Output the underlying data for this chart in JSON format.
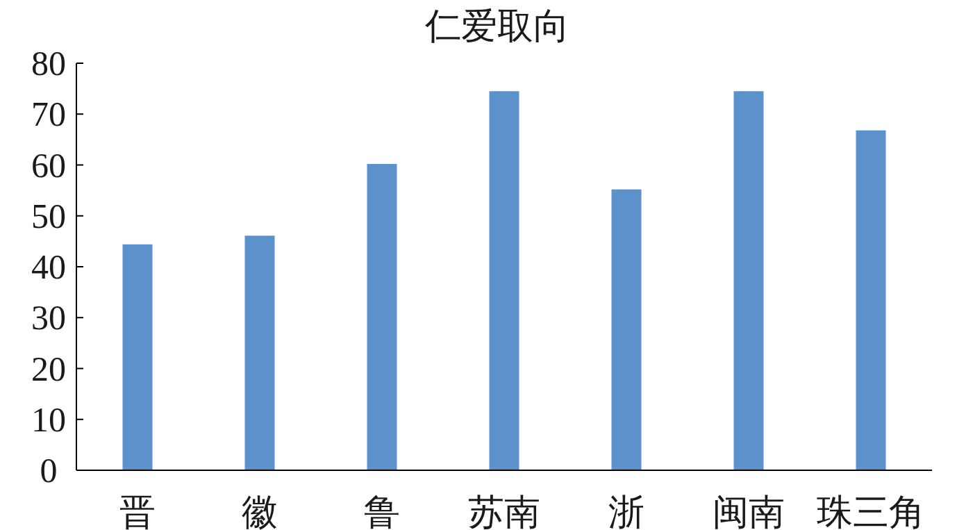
{
  "chart_data": {
    "type": "bar",
    "title": "仁爱取向",
    "categories": [
      "晋",
      "徽",
      "鲁",
      "苏南",
      "浙",
      "闽南",
      "珠三角"
    ],
    "values": [
      44.4,
      46.1,
      60.2,
      74.5,
      55.2,
      74.5,
      66.8
    ],
    "color": "#5b92cb",
    "ylim": [
      0,
      80
    ],
    "yticks": [
      0,
      10,
      20,
      30,
      40,
      50,
      60,
      70,
      80
    ]
  }
}
